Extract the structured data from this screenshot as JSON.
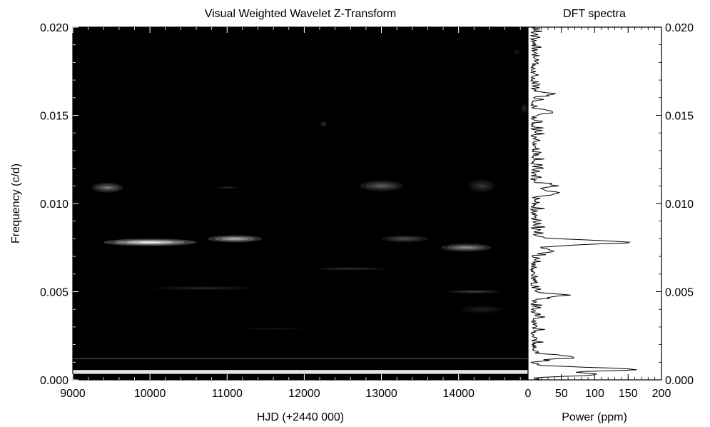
{
  "chart_data": [
    {
      "type": "heatmap",
      "title": "Visual Weighted Wavelet Z-Transform",
      "xlabel": "HJD (+2440 000)",
      "ylabel": "Frequency (c/d)",
      "xlim": [
        9000,
        14900
      ],
      "ylim": [
        0.0,
        0.02
      ],
      "xticks": [
        "9000",
        "10000",
        "11000",
        "12000",
        "13000",
        "14000"
      ],
      "yticks": [
        "0.000",
        "0.005",
        "0.010",
        "0.015",
        "0.020"
      ],
      "colormap": "grayscale",
      "background_color": "#000000",
      "features": [
        {
          "x_center": 10000,
          "y_center": 0.0078,
          "x_width": 1200,
          "y_width": 0.0004,
          "level": 0.95
        },
        {
          "x_center": 11100,
          "y_center": 0.008,
          "x_width": 700,
          "y_width": 0.0004,
          "level": 0.7
        },
        {
          "x_center": 14100,
          "y_center": 0.0075,
          "x_width": 650,
          "y_width": 0.00045,
          "level": 0.55
        },
        {
          "x_center": 13300,
          "y_center": 0.008,
          "x_width": 600,
          "y_width": 0.0004,
          "level": 0.3
        },
        {
          "x_center": 9450,
          "y_center": 0.0109,
          "x_width": 400,
          "y_width": 0.00055,
          "level": 0.45
        },
        {
          "x_center": 13000,
          "y_center": 0.011,
          "x_width": 550,
          "y_width": 0.0006,
          "level": 0.35
        },
        {
          "x_center": 14300,
          "y_center": 0.011,
          "x_width": 350,
          "y_width": 0.0007,
          "level": 0.2
        },
        {
          "x_center": 11000,
          "y_center": 0.0109,
          "x_width": 280,
          "y_width": 0.00015,
          "level": 0.18
        },
        {
          "x_center": 12600,
          "y_center": 0.0063,
          "x_width": 900,
          "y_width": 0.00018,
          "level": 0.2
        },
        {
          "x_center": 10700,
          "y_center": 0.0052,
          "x_width": 1300,
          "y_width": 0.00022,
          "level": 0.15
        },
        {
          "x_center": 14200,
          "y_center": 0.005,
          "x_width": 700,
          "y_width": 0.0002,
          "level": 0.25
        },
        {
          "x_center": 14300,
          "y_center": 0.004,
          "x_width": 550,
          "y_width": 0.00045,
          "level": 0.12
        },
        {
          "x_center": 11600,
          "y_center": 0.0029,
          "x_width": 850,
          "y_width": 0.0001,
          "level": 0.12
        },
        {
          "x_center": 12250,
          "y_center": 0.0145,
          "x_width": 90,
          "y_width": 0.00035,
          "level": 0.2
        },
        {
          "x_center": 14850,
          "y_center": 0.0154,
          "x_width": 90,
          "y_width": 0.0006,
          "level": 0.15
        },
        {
          "x_center": 14750,
          "y_center": 0.0186,
          "x_width": 80,
          "y_width": 0.0003,
          "level": 0.12
        }
      ],
      "bands": [
        {
          "y_center": 0.00045,
          "y_width": 0.00022,
          "level": 0.9
        },
        {
          "y_center": 0.0012,
          "y_width": 6e-05,
          "level": 0.25
        }
      ]
    },
    {
      "type": "line",
      "title": "DFT spectra",
      "xlabel": "Power (ppm)",
      "xlim": [
        0,
        200
      ],
      "ylim": [
        0.0,
        0.02
      ],
      "xticks": [
        "0",
        "50",
        "100",
        "150",
        "200"
      ],
      "yticks": [
        "0.000",
        "0.005",
        "0.010",
        "0.015",
        "0.020"
      ],
      "peaks": [
        {
          "freq": 0.0078,
          "power": 135,
          "width": 0.00012
        },
        {
          "freq": 0.0006,
          "power": 150,
          "width": 0.0001
        },
        {
          "freq": 0.0003,
          "power": 95,
          "width": 8e-05
        },
        {
          "freq": 0.0013,
          "power": 60,
          "width": 0.0001
        },
        {
          "freq": 0.0048,
          "power": 43,
          "width": 0.0001
        },
        {
          "freq": 0.0106,
          "power": 40,
          "width": 0.0001
        },
        {
          "freq": 0.011,
          "power": 32,
          "width": 0.0001
        },
        {
          "freq": 0.0152,
          "power": 28,
          "width": 0.0001
        },
        {
          "freq": 0.0162,
          "power": 22,
          "width": 0.0001
        },
        {
          "freq": 0.0073,
          "power": 30,
          "width": 0.0001
        }
      ]
    }
  ]
}
